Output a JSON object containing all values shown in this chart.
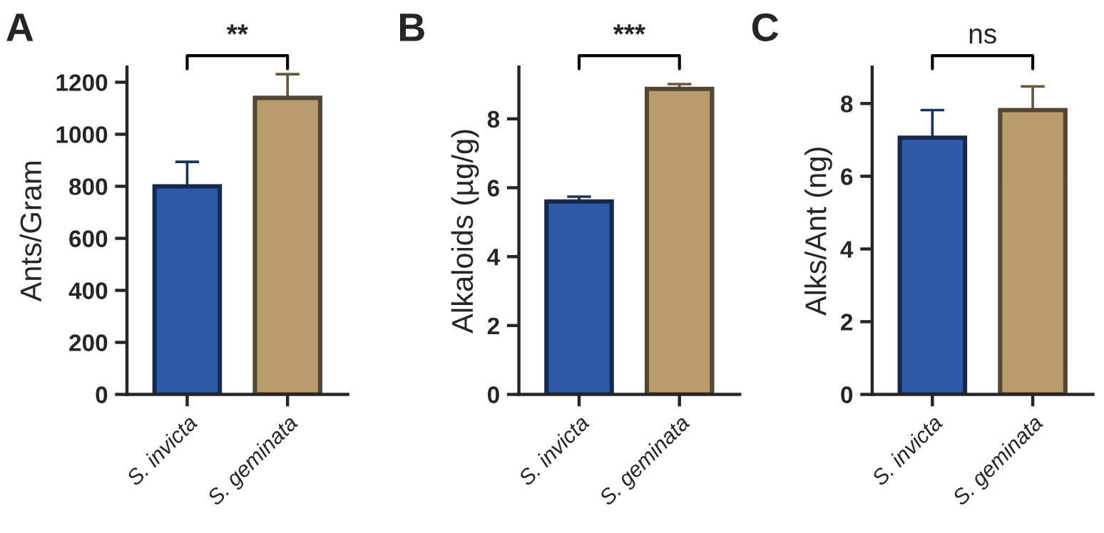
{
  "chart_data": [
    {
      "type": "bar",
      "title": "A",
      "ylabel": "Ants/Gram",
      "categories": [
        "S. invicta",
        "S. geminata"
      ],
      "values": [
        800,
        1140
      ],
      "colors": [
        "#2f5aa8",
        "#b89c6e"
      ],
      "errors": [
        94,
        91
      ],
      "ylim": [
        0,
        1258
      ],
      "yticks": [
        0,
        200,
        400,
        600,
        800,
        1000,
        1200
      ],
      "annotations": [
        "**"
      ],
      "grid": false,
      "legend": false
    },
    {
      "type": "bar",
      "title": "B",
      "ylabel": "Alkaloids (µg/g)",
      "categories": [
        "S. invicta",
        "S. geminata"
      ],
      "values": [
        5.6,
        8.87
      ],
      "colors": [
        "#2f5aa8",
        "#b89c6e"
      ],
      "errors": [
        0.14,
        0.14
      ],
      "ylim": [
        0,
        9.5
      ],
      "yticks": [
        0,
        2,
        4,
        6,
        8
      ],
      "annotations": [
        "***"
      ],
      "grid": false,
      "legend": false
    },
    {
      "type": "bar",
      "title": "C",
      "ylabel": "Alks/Ant (ng)",
      "categories": [
        "S. invicta",
        "S. geminata"
      ],
      "values": [
        7.06,
        7.82
      ],
      "colors": [
        "#2f5aa8",
        "#b89c6e"
      ],
      "errors": [
        0.76,
        0.65
      ],
      "ylim": [
        0,
        9
      ],
      "yticks": [
        0,
        2,
        4,
        6,
        8
      ],
      "annotations": [
        "ns"
      ],
      "grid": false,
      "legend": false
    }
  ]
}
